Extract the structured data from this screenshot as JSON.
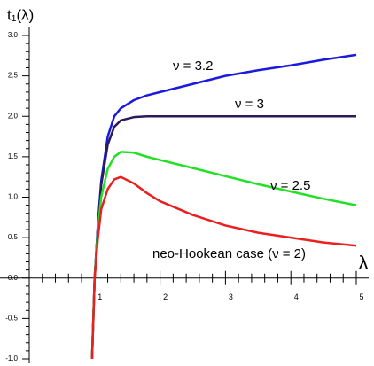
{
  "chart_data": {
    "type": "line",
    "ylabel": "t₁(λ)",
    "xlabel": "λ",
    "xlim": [
      0,
      5
    ],
    "ylim": [
      -1,
      3
    ],
    "xticks": [
      1,
      2,
      3,
      4,
      5
    ],
    "yticks": [
      {
        "value": -1,
        "label": "-1.0"
      },
      -0.5,
      {
        "value": 0,
        "label": "0.0"
      },
      0.5,
      {
        "value": 1,
        "label": "1.0"
      },
      1.5,
      {
        "value": 2,
        "label": "2.0"
      },
      2.5,
      {
        "value": 3,
        "label": "3.0"
      }
    ],
    "xminorticks": [
      0.2,
      0.4,
      0.6,
      0.8,
      1.2,
      1.4,
      1.6,
      1.8,
      2.2,
      2.4,
      2.6,
      2.8,
      3.2,
      3.4,
      3.6,
      3.8,
      4.2,
      4.4,
      4.6,
      4.8
    ],
    "yminorticks": [
      -0.9,
      -0.8,
      -0.7,
      -0.6,
      -0.4,
      -0.3,
      -0.2,
      -0.1,
      0.1,
      0.2,
      0.3,
      0.4,
      0.6,
      0.7,
      0.8,
      0.9,
      1.1,
      1.2,
      1.3,
      1.4,
      1.6,
      1.7,
      1.8,
      1.9,
      2.1,
      2.2,
      2.3,
      2.4,
      2.6,
      2.7,
      2.8,
      2.9
    ],
    "x": [
      0.96,
      1.0,
      1.05,
      1.1,
      1.2,
      1.3,
      1.4,
      1.6,
      1.8,
      2.0,
      2.5,
      3.0,
      3.5,
      4.0,
      4.5,
      5.0
    ],
    "series": [
      {
        "name": "ν = 3.2",
        "color": "#1a1adc",
        "values": [
          -1.0,
          0.0,
          0.68,
          1.2,
          1.75,
          2.0,
          2.1,
          2.2,
          2.26,
          2.3,
          2.4,
          2.5,
          2.57,
          2.63,
          2.7,
          2.76
        ]
      },
      {
        "name": "ν = 3",
        "color": "#2a1c5c",
        "values": [
          -1.0,
          0.0,
          0.65,
          1.15,
          1.65,
          1.87,
          1.95,
          1.99,
          2.0,
          2.0,
          2.0,
          2.0,
          2.0,
          2.0,
          2.0,
          2.0
        ]
      },
      {
        "name": "ν = 2.5",
        "color": "#22e022",
        "values": [
          -1.0,
          0.0,
          0.6,
          1.0,
          1.35,
          1.5,
          1.56,
          1.55,
          1.5,
          1.46,
          1.36,
          1.26,
          1.16,
          1.07,
          0.98,
          0.9
        ]
      },
      {
        "name": "neo-Hookean case (ν = 2)",
        "color": "#e82020",
        "values": [
          -1.0,
          0.0,
          0.5,
          0.85,
          1.1,
          1.22,
          1.25,
          1.17,
          1.05,
          0.95,
          0.78,
          0.65,
          0.56,
          0.5,
          0.44,
          0.4
        ]
      }
    ]
  }
}
